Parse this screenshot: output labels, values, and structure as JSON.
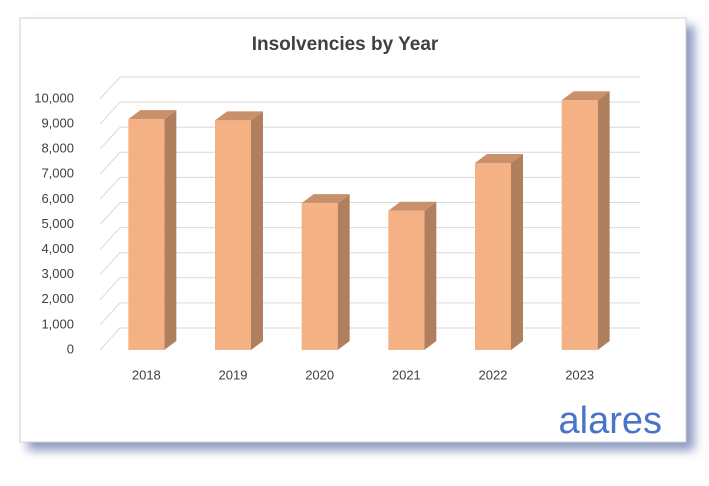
{
  "chart_data": {
    "type": "bar3d",
    "title": "Insolvencies by Year",
    "categories": [
      "2018",
      "2019",
      "2020",
      "2021",
      "2022",
      "2023"
    ],
    "values": [
      9200,
      9150,
      5850,
      5550,
      7450,
      9950
    ],
    "color": "#f4b183",
    "ylim": [
      0,
      10000
    ],
    "yticks": [
      0,
      {
        "value": 1000,
        "label": "1,000"
      },
      {
        "value": 2000,
        "label": "2,000"
      },
      {
        "value": 3000,
        "label": "3,000"
      },
      {
        "value": 4000,
        "label": "4,000"
      },
      {
        "value": 5000,
        "label": "5,000"
      },
      {
        "value": 6000,
        "label": "6,000"
      },
      {
        "value": 7000,
        "label": "7,000"
      },
      {
        "value": 8000,
        "label": "8,000"
      },
      {
        "value": 9000,
        "label": "9,000"
      },
      {
        "value": 10000,
        "label": "10,000"
      }
    ],
    "grid": true
  },
  "logo": "alares"
}
